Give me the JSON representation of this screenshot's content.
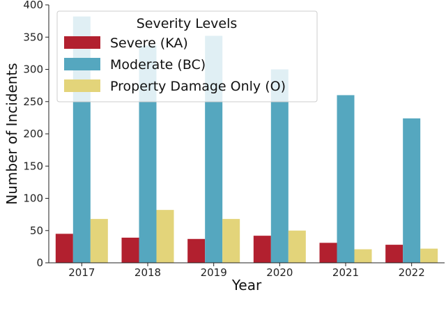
{
  "chart_data": {
    "type": "bar",
    "title": "",
    "xlabel": "Year",
    "ylabel": "Number of Incidents",
    "categories": [
      "2017",
      "2018",
      "2019",
      "2020",
      "2021",
      "2022"
    ],
    "ylim": [
      0,
      400
    ],
    "yticks": [
      0,
      50,
      100,
      150,
      200,
      250,
      300,
      350,
      400
    ],
    "grid": false,
    "legend": {
      "title": "Severity Levels",
      "placement": "top-left"
    },
    "series": [
      {
        "name": "Severe (KA)",
        "color": "#b2202f",
        "values": [
          45,
          39,
          37,
          42,
          31,
          28
        ]
      },
      {
        "name": "Moderate (BC)",
        "color": "#55a7bf",
        "values": [
          382,
          337,
          352,
          300,
          260,
          224
        ]
      },
      {
        "name": "Property Damage Only (O)",
        "color": "#e3d47a",
        "values": [
          68,
          82,
          68,
          50,
          21,
          22
        ]
      }
    ]
  }
}
